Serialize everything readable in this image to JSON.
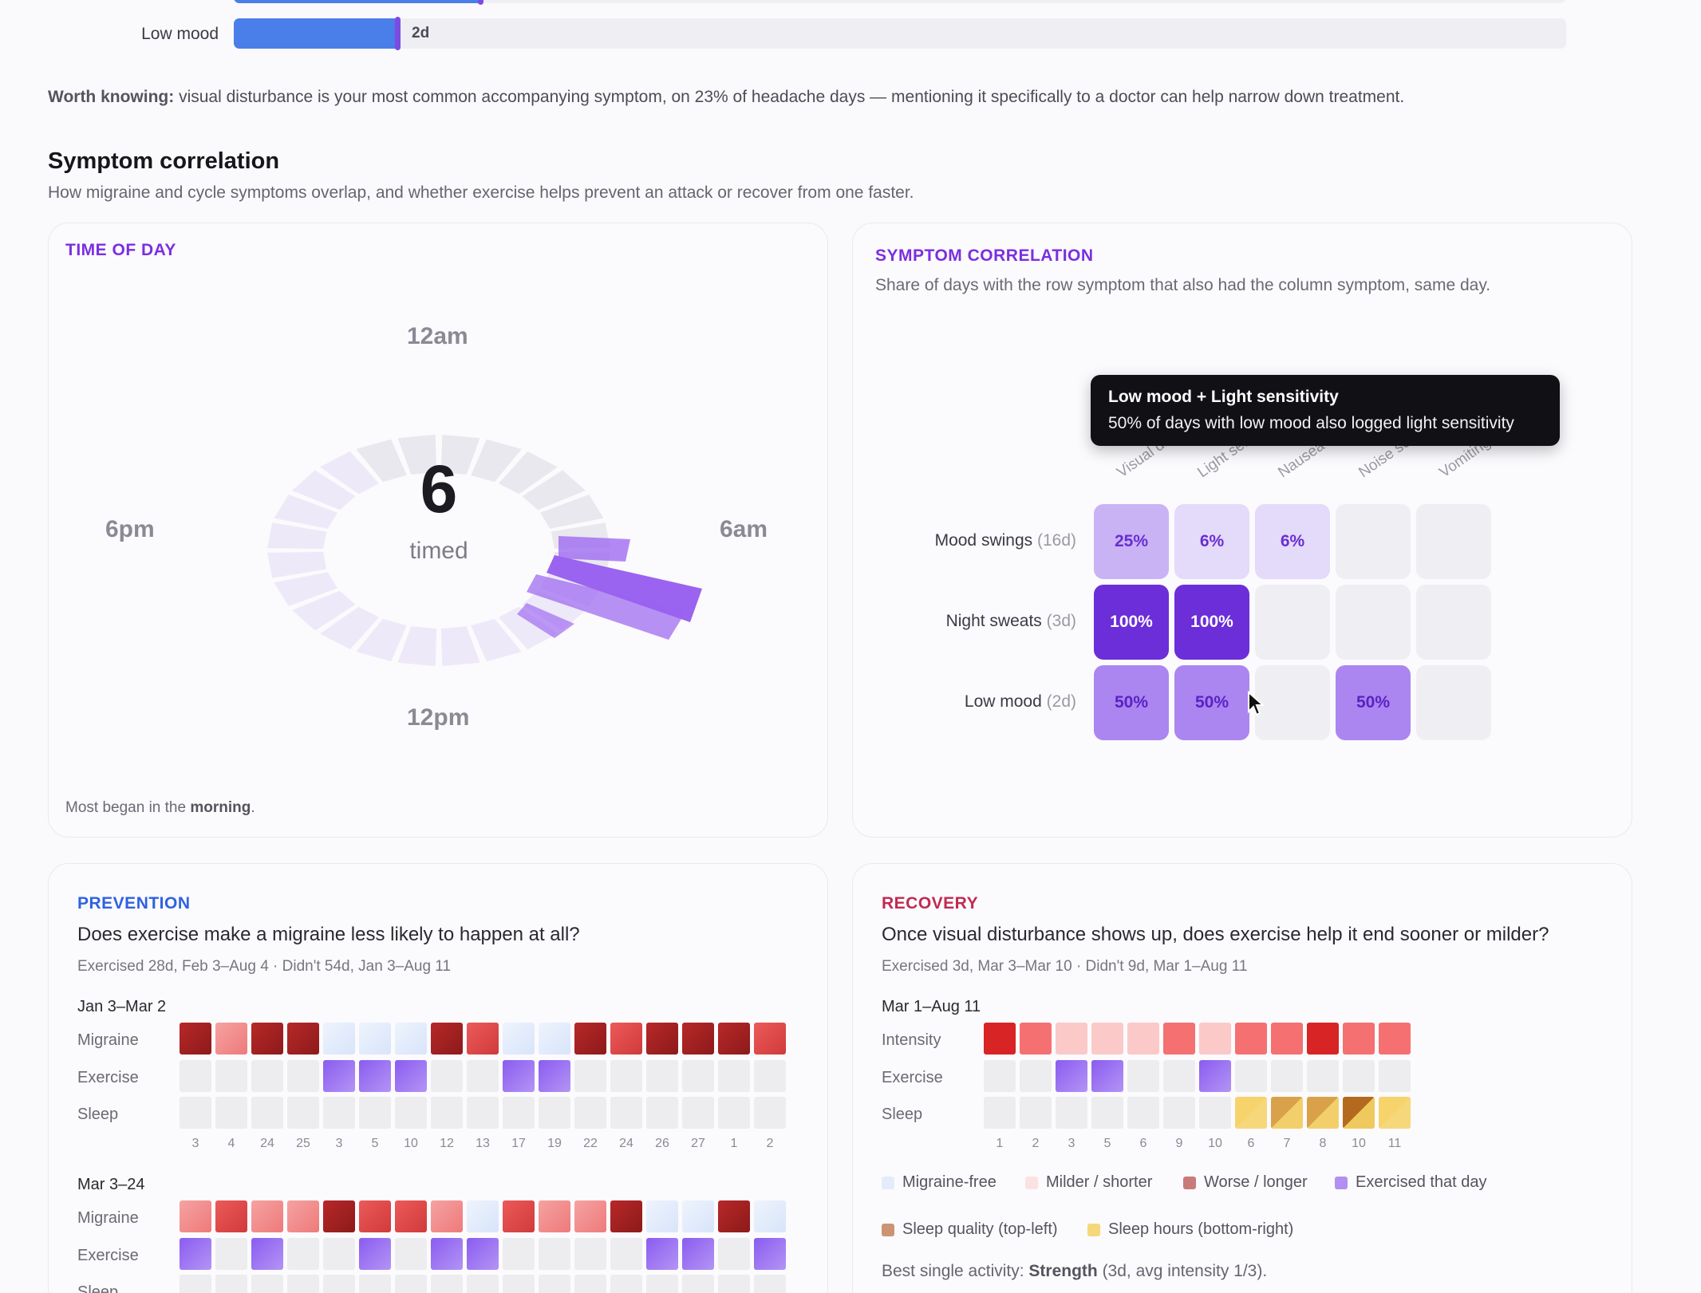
{
  "freq_rows": [
    {
      "label": "",
      "value_label": "",
      "fraction": 0.185
    },
    {
      "label": "Low mood",
      "value_label": "2d",
      "fraction": 0.123
    }
  ],
  "note": {
    "lead": "Worth knowing:",
    "text": " visual disturbance is your most common accompanying symptom, on 23% of headache days — mentioning it specifically to a doctor can help narrow down treatment."
  },
  "section": {
    "title": "Symptom correlation",
    "subtitle": "How migraine and cycle symptoms overlap, and whether exercise helps prevent an attack or recover from one faster."
  },
  "time_of_day": {
    "eyebrow": "TIME OF DAY",
    "labels": {
      "top": "12am",
      "right": "6am",
      "bottom": "12pm",
      "left": "6pm"
    },
    "count": "6",
    "count_label": "timed",
    "footer_lead": "Most began in the ",
    "footer_bold": "morning",
    "footer_tail": ".",
    "colors": {
      "ring": "#e9e8ee",
      "ring_light": "#eee9f8",
      "bar": "#9a63f0"
    }
  },
  "correlation": {
    "eyebrow": "SYMPTOM CORRELATION",
    "subtitle": "Share of days with the row symptom that also had the column symptom, same day.",
    "tooltip": {
      "title": "Low mood + Light sensitivity",
      "body": "50% of days with low mood also logged light sensitivity"
    },
    "columns": [
      "Visual dis",
      "Light sens",
      "Nausea",
      "Noise sen",
      "Vomiting"
    ],
    "rows": [
      {
        "name": "Mood swings",
        "count": "(16d)",
        "cells": [
          "25%",
          "6%",
          "6%",
          "",
          ""
        ],
        "levels": [
          0.25,
          0.06,
          0.06,
          0,
          0
        ]
      },
      {
        "name": "Night sweats",
        "count": "(3d)",
        "cells": [
          "100%",
          "100%",
          "",
          "",
          ""
        ],
        "levels": [
          1,
          1,
          0,
          0,
          0
        ]
      },
      {
        "name": "Low mood",
        "count": "(2d)",
        "cells": [
          "50%",
          "50%",
          "",
          "50%",
          ""
        ],
        "levels": [
          0.5,
          0.5,
          0,
          0.5,
          0
        ]
      }
    ]
  },
  "prevention": {
    "eyebrow": "PREVENTION",
    "question": "Does exercise make a migraine less likely to happen at all?",
    "meta": "Exercised 28d, Feb 3–Aug 4 · Didn't 54d, Jan 3–Aug 11",
    "blocks": [
      {
        "range": "Jan 3–Mar 2",
        "ticks": [
          "3",
          "4",
          "24",
          "25",
          "3",
          "5",
          "10",
          "12",
          "13",
          "17",
          "19",
          "22",
          "24",
          "26",
          "27",
          "1",
          "2"
        ],
        "migraine": [
          "w",
          "l",
          "w",
          "w",
          "f",
          "f",
          "f",
          "w",
          "m",
          "f",
          "f",
          "w",
          "m",
          "w",
          "w",
          "w",
          "m"
        ],
        "exercise": [
          0,
          0,
          0,
          0,
          1,
          1,
          1,
          0,
          0,
          1,
          1,
          0,
          0,
          0,
          0,
          0,
          0
        ]
      },
      {
        "range": "Mar 3–24",
        "ticks": [],
        "migraine": [
          "l",
          "m",
          "l",
          "l",
          "w",
          "m",
          "m",
          "l",
          "f",
          "m",
          "l",
          "l",
          "w",
          "f",
          "f",
          "w",
          "f"
        ],
        "exercise": [
          1,
          0,
          1,
          0,
          0,
          1,
          0,
          1,
          1,
          0,
          0,
          0,
          0,
          1,
          1,
          0,
          1
        ]
      }
    ],
    "row_labels": {
      "migraine": "Migraine",
      "exercise": "Exercise",
      "sleep": "Sleep"
    }
  },
  "recovery": {
    "eyebrow": "RECOVERY",
    "question": "Once visual disturbance shows up, does exercise help it end sooner or milder?",
    "meta": "Exercised 3d, Mar 3–Mar 10 · Didn't 9d, Mar 1–Aug 11",
    "range": "Mar 1–Aug 11",
    "row_labels": {
      "intensity": "Intensity",
      "exercise": "Exercise",
      "sleep": "Sleep"
    },
    "ticks": [
      "1",
      "2",
      "3",
      "5",
      "6",
      "9",
      "10",
      "6",
      "7",
      "8",
      "10",
      "11"
    ],
    "intensity": [
      3,
      2,
      1,
      1,
      1,
      2,
      1,
      2,
      2,
      3,
      2,
      2
    ],
    "exercise": [
      0,
      0,
      1,
      1,
      0,
      0,
      1,
      0,
      0,
      0,
      0,
      0
    ],
    "sleep": [
      0,
      0,
      0,
      0,
      0,
      0,
      0,
      1,
      2,
      2,
      3,
      1
    ],
    "legend": [
      {
        "label": "Migraine-free",
        "color": "#e4ecfb"
      },
      {
        "label": "Milder / shorter",
        "color": "#fbe2e2"
      },
      {
        "label": "Worse / longer",
        "color": "#c97a7a"
      },
      {
        "label": "Exercised that day",
        "color": "#b190f0"
      },
      {
        "label": "Sleep quality (top-left)",
        "color": "#cc9474"
      },
      {
        "label": "Sleep hours (bottom-right)",
        "color": "#f6d77a"
      }
    ],
    "best_lead": "Best single activity: ",
    "best_bold": "Strength",
    "best_tail": " (3d, avg intensity 1/3)."
  }
}
